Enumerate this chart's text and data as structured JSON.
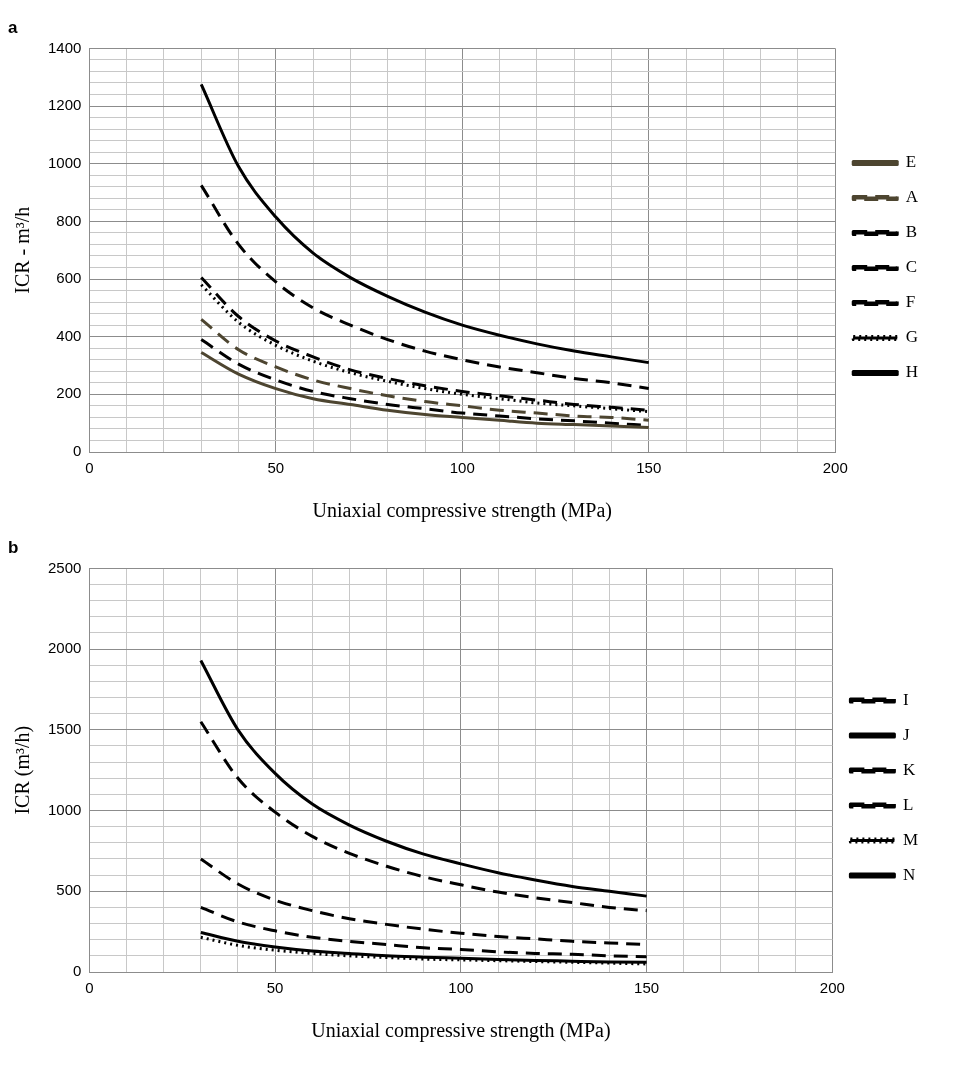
{
  "chart_data": [
    {
      "type": "line",
      "title": "a",
      "xlabel": "Uniaxial compressive strength (MPa)",
      "ylabel": "ICR - m³/h",
      "legend": "right",
      "grid": true,
      "x": [
        30,
        40,
        50,
        60,
        70,
        80,
        90,
        100,
        110,
        120,
        130,
        140,
        150
      ],
      "xlim": [
        0,
        200
      ],
      "xticks": [
        0,
        {
          "value": 10,
          "label": null
        },
        {
          "value": 20,
          "label": null
        },
        {
          "value": 30,
          "label": null
        },
        {
          "value": 40,
          "label": null
        },
        50,
        {
          "value": 60,
          "label": null
        },
        {
          "value": 70,
          "label": null
        },
        {
          "value": 80,
          "label": null
        },
        {
          "value": 90,
          "label": null
        },
        100,
        {
          "value": 110,
          "label": null
        },
        {
          "value": 120,
          "label": null
        },
        {
          "value": 130,
          "label": null
        },
        {
          "value": 140,
          "label": null
        },
        150,
        {
          "value": 160,
          "label": null
        },
        {
          "value": 170,
          "label": null
        },
        {
          "value": 180,
          "label": null
        },
        {
          "value": 190,
          "label": null
        },
        200
      ],
      "ylim": [
        0,
        1400
      ],
      "yticks": [
        0,
        {
          "value": 40,
          "label": null
        },
        {
          "value": 80,
          "label": null
        },
        {
          "value": 120,
          "label": null
        },
        {
          "value": 160,
          "label": null
        },
        200,
        {
          "value": 240,
          "label": null
        },
        {
          "value": 280,
          "label": null
        },
        {
          "value": 320,
          "label": null
        },
        {
          "value": 360,
          "label": null
        },
        400,
        {
          "value": 440,
          "label": null
        },
        {
          "value": 480,
          "label": null
        },
        {
          "value": 520,
          "label": null
        },
        {
          "value": 560,
          "label": null
        },
        600,
        {
          "value": 640,
          "label": null
        },
        {
          "value": 680,
          "label": null
        },
        {
          "value": 720,
          "label": null
        },
        {
          "value": 760,
          "label": null
        },
        800,
        {
          "value": 840,
          "label": null
        },
        {
          "value": 880,
          "label": null
        },
        {
          "value": 920,
          "label": null
        },
        {
          "value": 960,
          "label": null
        },
        1000,
        {
          "value": 1040,
          "label": null
        },
        {
          "value": 1080,
          "label": null
        },
        {
          "value": 1120,
          "label": null
        },
        {
          "value": 1160,
          "label": null
        },
        1200,
        {
          "value": 1240,
          "label": null
        },
        {
          "value": 1280,
          "label": null
        },
        {
          "value": 1320,
          "label": null
        },
        {
          "value": 1360,
          "label": null
        },
        1400
      ],
      "series": [
        {
          "name": "E",
          "color": "#4d4530",
          "line_style": "solid",
          "values": [
            345,
            270,
            220,
            185,
            165,
            145,
            130,
            120,
            110,
            100,
            95,
            90,
            85
          ]
        },
        {
          "name": "A",
          "color": "#4d4530",
          "line_style": "dashed",
          "values": [
            460,
            355,
            295,
            250,
            220,
            195,
            175,
            160,
            145,
            135,
            125,
            120,
            110
          ]
        },
        {
          "name": "B",
          "color": "#000000",
          "line_style": "dashed",
          "values": [
            925,
            720,
            590,
            500,
            440,
            390,
            350,
            320,
            295,
            275,
            255,
            240,
            220
          ]
        },
        {
          "name": "C",
          "color": "#000000",
          "line_style": "dashed",
          "values": [
            605,
            470,
            385,
            330,
            285,
            255,
            230,
            210,
            195,
            180,
            165,
            155,
            145
          ]
        },
        {
          "name": "F",
          "color": "#000000",
          "line_style": "dashed",
          "values": [
            390,
            305,
            250,
            210,
            185,
            165,
            150,
            135,
            125,
            115,
            108,
            100,
            92
          ]
        },
        {
          "name": "G",
          "color": "#000000",
          "line_style": "dotted",
          "values": [
            580,
            450,
            370,
            315,
            275,
            245,
            220,
            200,
            185,
            170,
            160,
            150,
            140
          ]
        },
        {
          "name": "H",
          "color": "#000000",
          "line_style": "solid",
          "values": [
            1275,
            990,
            815,
            690,
            605,
            540,
            485,
            440,
            405,
            375,
            350,
            330,
            310
          ]
        }
      ]
    },
    {
      "type": "line",
      "title": "b",
      "xlabel": "Uniaxial compressive strength (MPa)",
      "ylabel": "ICR (m³/h)",
      "legend": "right",
      "grid": true,
      "x": [
        30,
        40,
        50,
        60,
        70,
        80,
        90,
        100,
        110,
        120,
        130,
        140,
        150
      ],
      "xlim": [
        0,
        200
      ],
      "xticks": [
        0,
        {
          "value": 10,
          "label": null
        },
        {
          "value": 20,
          "label": null
        },
        {
          "value": 30,
          "label": null
        },
        {
          "value": 40,
          "label": null
        },
        50,
        {
          "value": 60,
          "label": null
        },
        {
          "value": 70,
          "label": null
        },
        {
          "value": 80,
          "label": null
        },
        {
          "value": 90,
          "label": null
        },
        100,
        {
          "value": 110,
          "label": null
        },
        {
          "value": 120,
          "label": null
        },
        {
          "value": 130,
          "label": null
        },
        {
          "value": 140,
          "label": null
        },
        150,
        {
          "value": 160,
          "label": null
        },
        {
          "value": 170,
          "label": null
        },
        {
          "value": 180,
          "label": null
        },
        {
          "value": 190,
          "label": null
        },
        200
      ],
      "ylim": [
        0,
        2500
      ],
      "yticks": [
        0,
        {
          "value": 100,
          "label": null
        },
        {
          "value": 200,
          "label": null
        },
        {
          "value": 300,
          "label": null
        },
        {
          "value": 400,
          "label": null
        },
        500,
        {
          "value": 600,
          "label": null
        },
        {
          "value": 700,
          "label": null
        },
        {
          "value": 800,
          "label": null
        },
        {
          "value": 900,
          "label": null
        },
        1000,
        {
          "value": 1100,
          "label": null
        },
        {
          "value": 1200,
          "label": null
        },
        {
          "value": 1300,
          "label": null
        },
        {
          "value": 1400,
          "label": null
        },
        1500,
        {
          "value": 1600,
          "label": null
        },
        {
          "value": 1700,
          "label": null
        },
        {
          "value": 1800,
          "label": null
        },
        {
          "value": 1900,
          "label": null
        },
        2000,
        {
          "value": 2100,
          "label": null
        },
        {
          "value": 2200,
          "label": null
        },
        {
          "value": 2300,
          "label": null
        },
        {
          "value": 2400,
          "label": null
        },
        2500
      ],
      "series": [
        {
          "name": "I",
          "color": "#000000",
          "line_style": "dashed",
          "values": [
            1550,
            1200,
            990,
            840,
            735,
            655,
            590,
            540,
            495,
            460,
            430,
            400,
            380
          ]
        },
        {
          "name": "J",
          "color": "#000000",
          "line_style": "solid",
          "values": [
            1930,
            1500,
            1230,
            1040,
            910,
            810,
            730,
            670,
            615,
            570,
            530,
            500,
            470
          ]
        },
        {
          "name": "K",
          "color": "#000000",
          "line_style": "dashed",
          "values": [
            700,
            545,
            445,
            380,
            330,
            295,
            265,
            240,
            220,
            205,
            190,
            180,
            170
          ]
        },
        {
          "name": "L",
          "color": "#000000",
          "line_style": "dashed",
          "values": [
            400,
            310,
            255,
            215,
            190,
            170,
            150,
            140,
            125,
            115,
            110,
            100,
            95
          ]
        },
        {
          "name": "M",
          "color": "#000000",
          "line_style": "dotted",
          "values": [
            215,
            165,
            135,
            115,
            100,
            90,
            80,
            75,
            70,
            65,
            60,
            55,
            50
          ]
        },
        {
          "name": "N",
          "color": "#000000",
          "line_style": "solid",
          "values": [
            245,
            190,
            155,
            130,
            115,
            100,
            92,
            85,
            78,
            72,
            67,
            62,
            60
          ]
        }
      ]
    }
  ]
}
